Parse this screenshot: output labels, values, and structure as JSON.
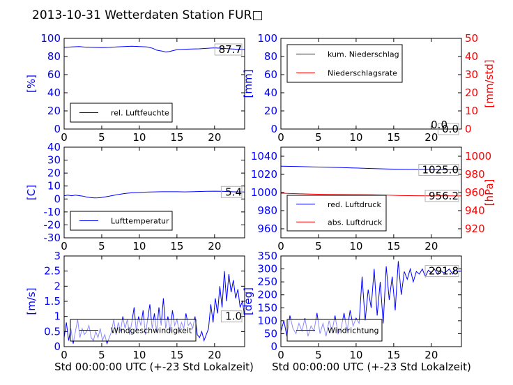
{
  "figure": {
    "title": "2013-10-31 Wetterdaten Station FUR□",
    "x_label": "Std 00:00:00 UTC (+-23 Std Lokalzeit)"
  },
  "colors": {
    "blue": "#0000ff",
    "red": "#ff0000",
    "axis": "#000000",
    "legend_border": "#000000"
  },
  "chart_data": [
    {
      "id": "humidity",
      "type": "line",
      "ylabel": "[%]",
      "ylim": [
        0,
        100
      ],
      "yticks": [
        0,
        20,
        40,
        60,
        80,
        100
      ],
      "xlim": [
        0,
        24
      ],
      "xticks": [
        0,
        5,
        10,
        15,
        20
      ],
      "legend_pos": "lower-left",
      "current_value": "87.7",
      "series": [
        {
          "name": "rel. Luftfeuchte",
          "color": "#0000ff",
          "x": [
            0,
            1,
            2,
            3,
            4,
            5,
            6,
            7,
            8,
            9,
            10,
            11,
            11.8,
            12.3,
            13,
            13.5,
            14,
            14.5,
            15,
            16,
            17,
            18,
            19,
            20,
            21,
            22,
            23,
            24
          ],
          "y": [
            90,
            90.5,
            91,
            90.2,
            90,
            89.8,
            90,
            90.5,
            91,
            91.3,
            91,
            90.5,
            89,
            87,
            86,
            85,
            85.5,
            86.5,
            87.5,
            88,
            88.3,
            88.5,
            89,
            89.5,
            89,
            88.5,
            88,
            87.7
          ]
        }
      ]
    },
    {
      "id": "precip",
      "type": "line",
      "ylabel": "[mm]",
      "ylim": [
        0,
        100
      ],
      "yticks": [
        0,
        20,
        40,
        60,
        80,
        100
      ],
      "y2label": "[mm/std]",
      "y2lim": [
        0,
        50
      ],
      "y2ticks": [
        0,
        10,
        20,
        30,
        40,
        50
      ],
      "xlim": [
        0,
        24
      ],
      "xticks": [
        0,
        5,
        10,
        15,
        20
      ],
      "legend_pos": "upper-left",
      "current_value": "0.0",
      "current_value2": "0.0",
      "series": [
        {
          "name": "kum. Niederschlag",
          "color": "#0000ff",
          "axis": "left",
          "x": [
            0,
            24
          ],
          "y": [
            0,
            0
          ]
        },
        {
          "name": "Niederschlagsrate",
          "color": "#ff0000",
          "axis": "right",
          "x": [
            0,
            24
          ],
          "y": [
            0,
            0
          ]
        }
      ]
    },
    {
      "id": "temperature",
      "type": "line",
      "ylabel": "[C]",
      "ylim": [
        -30,
        40
      ],
      "yticks": [
        -30,
        -20,
        -10,
        0,
        10,
        20,
        30,
        40
      ],
      "xlim": [
        0,
        24
      ],
      "xticks": [
        0,
        5,
        10,
        15,
        20
      ],
      "legend_pos": "lower-left",
      "current_value": "5.4",
      "series": [
        {
          "name": "Lufttemperatur",
          "color": "#0000ff",
          "x": [
            0,
            0.5,
            1,
            1.5,
            2,
            2.5,
            3,
            3.5,
            4,
            4.5,
            5,
            6,
            7,
            8,
            9,
            10,
            11,
            12,
            13,
            14,
            15,
            16,
            17,
            18,
            19,
            20,
            21,
            22,
            23,
            24
          ],
          "y": [
            2.5,
            3,
            2.5,
            3,
            2.6,
            2.2,
            1.5,
            1.1,
            0.8,
            0.9,
            1.2,
            2.2,
            3.3,
            4.2,
            4.8,
            5.0,
            5.3,
            5.5,
            5.6,
            5.6,
            5.6,
            5.5,
            5.6,
            5.8,
            5.9,
            6.0,
            5.9,
            5.7,
            5.5,
            5.4
          ]
        }
      ]
    },
    {
      "id": "pressure",
      "type": "line",
      "ylabel": "[hPa]",
      "ylim": [
        950,
        1050
      ],
      "yticks": [
        960,
        980,
        1000,
        1020,
        1040
      ],
      "y2lim": [
        910,
        1010
      ],
      "y2ticks": [
        920,
        940,
        960,
        980,
        1000
      ],
      "xlim": [
        0,
        24
      ],
      "xticks": [
        0,
        5,
        10,
        15,
        20
      ],
      "legend_pos": "lower-left",
      "current_value": "1025.0",
      "current_value2": "956.2",
      "series": [
        {
          "name": "red. Luftdruck",
          "color": "#0000ff",
          "axis": "left",
          "x": [
            0,
            2,
            4,
            6,
            8,
            10,
            12,
            14,
            16,
            18,
            20,
            22,
            24
          ],
          "y": [
            1029,
            1028.8,
            1028.3,
            1027.9,
            1027.5,
            1027,
            1026.5,
            1026,
            1025.5,
            1025.4,
            1025.3,
            1025.1,
            1025
          ]
        },
        {
          "name": "abs. Luftdruck",
          "color": "#ff0000",
          "axis": "right",
          "x": [
            0,
            2,
            4,
            6,
            8,
            10,
            12,
            14,
            16,
            18,
            20,
            22,
            24
          ],
          "y": [
            959.2,
            958.8,
            958.3,
            957.9,
            957.7,
            957.6,
            957.5,
            957.1,
            956.6,
            956.5,
            956.4,
            956.3,
            956.2
          ]
        }
      ]
    },
    {
      "id": "windspeed",
      "type": "line",
      "ylabel": "[m/s]",
      "ylim": [
        0,
        3
      ],
      "yticks": [
        0,
        0.5,
        1,
        1.5,
        2,
        2.5,
        3
      ],
      "xlim": [
        0,
        24
      ],
      "xticks": [
        0,
        5,
        10,
        15,
        20
      ],
      "legend_pos": "lower-left",
      "current_value": "1.0",
      "series": [
        {
          "name": "Windgeschwindigkeit",
          "color": "#0000ff",
          "x": [
            0,
            0.3,
            0.6,
            0.9,
            1.2,
            1.5,
            1.8,
            2.1,
            2.4,
            2.7,
            3,
            3.3,
            3.6,
            3.9,
            4.2,
            4.5,
            4.8,
            5.1,
            5.4,
            5.7,
            6,
            6.3,
            6.6,
            6.9,
            7.2,
            7.5,
            7.8,
            8.1,
            8.4,
            8.7,
            9,
            9.3,
            9.6,
            9.9,
            10.2,
            10.5,
            10.8,
            11.1,
            11.4,
            11.7,
            12,
            12.3,
            12.6,
            12.9,
            13.2,
            13.5,
            13.8,
            14.1,
            14.4,
            14.7,
            15,
            15.3,
            15.6,
            15.9,
            16.2,
            16.5,
            16.8,
            17.1,
            17.4,
            17.7,
            18,
            18.3,
            18.6,
            18.9,
            19.2,
            19.5,
            19.8,
            20.1,
            20.4,
            20.7,
            21,
            21.3,
            21.6,
            21.9,
            22.2,
            22.5,
            22.8,
            23.1,
            23.4,
            23.7,
            24
          ],
          "y": [
            0.3,
            0.8,
            0.2,
            0.6,
            0.1,
            0.5,
            0.9,
            0.3,
            0.6,
            0.4,
            0.5,
            0.7,
            0.3,
            0.2,
            0.5,
            0.3,
            0.6,
            0.2,
            0.4,
            0.1,
            0.3,
            0.5,
            0.9,
            0.4,
            0.8,
            0.5,
            1.0,
            0.6,
            0.9,
            0.4,
            0.8,
            1.3,
            0.5,
            1.0,
            0.7,
            1.2,
            0.4,
            0.9,
            1.4,
            0.6,
            1.1,
            0.5,
            1.3,
            0.7,
            1.6,
            0.6,
            1.0,
            0.5,
            1.2,
            0.7,
            0.9,
            0.5,
            0.8,
            0.6,
            1.1,
            0.7,
            0.8,
            0.6,
            1.0,
            0.4,
            0.3,
            0.5,
            0.2,
            0.4,
            0.6,
            1.4,
            0.8,
            1.6,
            1.1,
            2.0,
            1.3,
            2.5,
            1.5,
            2.4,
            1.8,
            2.2,
            1.6,
            1.9,
            1.3,
            1.5,
            1.0
          ]
        }
      ]
    },
    {
      "id": "winddir",
      "type": "line",
      "ylabel": "[deg]",
      "ylim": [
        0,
        350
      ],
      "yticks": [
        0,
        50,
        100,
        150,
        200,
        250,
        300,
        350
      ],
      "xlim": [
        0,
        24
      ],
      "xticks": [
        0,
        5,
        10,
        15,
        20
      ],
      "legend_pos": "lower-left",
      "current_value": "291.8",
      "series": [
        {
          "name": "Windrichtung",
          "color": "#0000ff",
          "x": [
            0,
            0.4,
            0.8,
            1.2,
            1.6,
            2,
            2.4,
            2.8,
            3.2,
            3.6,
            4,
            4.4,
            4.8,
            5.2,
            5.6,
            6,
            6.4,
            6.8,
            7.2,
            7.6,
            8,
            8.4,
            8.8,
            9.2,
            9.6,
            10,
            10.4,
            10.8,
            11.2,
            11.6,
            12,
            12.4,
            12.8,
            13.2,
            13.6,
            14,
            14.4,
            14.8,
            15.2,
            15.6,
            16,
            16.4,
            16.8,
            17.2,
            17.6,
            18,
            18.4,
            18.8,
            19.2,
            19.6,
            20,
            20.4,
            20.8,
            21.2,
            21.6,
            22,
            22.4,
            22.8,
            23.2,
            23.6,
            24
          ],
          "y": [
            60,
            100,
            40,
            120,
            70,
            50,
            90,
            60,
            110,
            40,
            80,
            60,
            130,
            50,
            90,
            40,
            100,
            60,
            120,
            50,
            70,
            130,
            60,
            140,
            80,
            110,
            90,
            270,
            100,
            220,
            150,
            300,
            120,
            250,
            90,
            310,
            180,
            270,
            140,
            330,
            200,
            290,
            260,
            300,
            250,
            290,
            280,
            300,
            270,
            295,
            285,
            300,
            280,
            295,
            285,
            290,
            300,
            280,
            295,
            290,
            291.8
          ]
        }
      ]
    }
  ]
}
